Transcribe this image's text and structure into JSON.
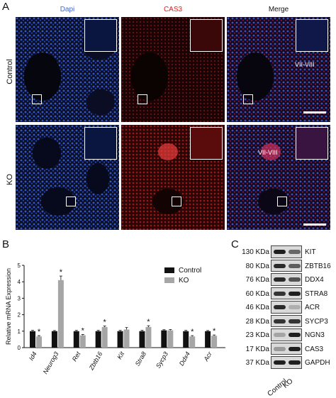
{
  "panel_a": {
    "letter": "A",
    "columns": [
      {
        "label": "Dapi",
        "color": "#3f66d9"
      },
      {
        "label": "CAS3",
        "color": "#e02020"
      },
      {
        "label": "Merge",
        "color": "#111111"
      }
    ],
    "rows": [
      "Control",
      "KO"
    ],
    "stage_labels": {
      "control": "VII-VIII",
      "ko": "VII-VIII"
    },
    "channel_colors": {
      "dapi": "#2e4fb8",
      "cas3": "#c81f1f",
      "background": "#0a0a14"
    }
  },
  "panel_b": {
    "letter": "B"
  },
  "panel_c": {
    "letter": "C",
    "sizes": [
      "130 KDa",
      "80 KDa",
      "76 KDa",
      "60 KDa",
      "46 KDa",
      "28 KDa",
      "23 KDa",
      "17 KDa",
      "37 KDa"
    ],
    "proteins": [
      "KIT",
      "ZBTB16",
      "DDX4",
      "STRA8",
      "ACR",
      "SYCP3",
      "NGN3",
      "CAS3",
      "GAPDH"
    ],
    "lanes": [
      "Control",
      "KO"
    ]
  },
  "chart_data": {
    "type": "bar",
    "ylabel": "Relative mRNA Expression",
    "ylim": [
      0,
      5
    ],
    "yticks": [
      0,
      1,
      2,
      3,
      4,
      5
    ],
    "categories": [
      "Id4",
      "Neurog3",
      "Ret",
      "Zbtb16",
      "Kit",
      "Stra8",
      "Sycp3",
      "Ddx4",
      "Acr"
    ],
    "series": [
      {
        "name": "Control",
        "color": "#111111",
        "values": [
          1.0,
          1.0,
          1.0,
          1.0,
          1.0,
          1.0,
          1.05,
          1.0,
          1.0
        ],
        "errors": [
          0.05,
          0.04,
          0.05,
          0.05,
          0.05,
          0.05,
          0.04,
          0.05,
          0.04
        ]
      },
      {
        "name": "KO",
        "color": "#a6a6a6",
        "values": [
          0.68,
          4.1,
          0.75,
          1.25,
          1.1,
          1.25,
          1.05,
          0.68,
          0.72
        ],
        "errors": [
          0.05,
          0.25,
          0.05,
          0.07,
          0.12,
          0.08,
          0.05,
          0.05,
          0.05
        ]
      }
    ],
    "significant": [
      true,
      true,
      true,
      true,
      false,
      true,
      false,
      true,
      true
    ],
    "significance_mark": "*",
    "legend_position": "top-right"
  }
}
